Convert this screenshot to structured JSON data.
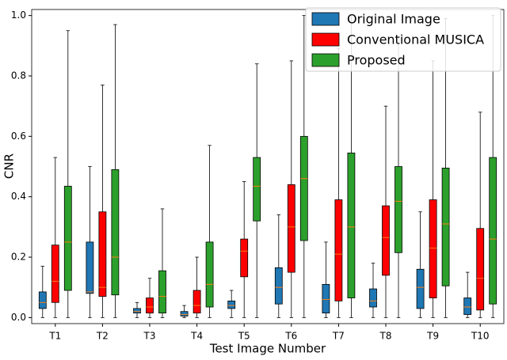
{
  "chart_data": {
    "type": "box",
    "x_label": "Test Image Number",
    "y_label": "CNR",
    "categories": [
      "T1",
      "T2",
      "T3",
      "T4",
      "T5",
      "T6",
      "T7",
      "T8",
      "T9",
      "T10"
    ],
    "ylim": [
      -0.02,
      1.02
    ],
    "yticks": [
      {
        "value": 0,
        "label": "0.0"
      },
      0.2,
      0.4,
      0.6,
      0.8,
      {
        "value": 1,
        "label": "1.0"
      }
    ],
    "median_color": "#ff7f0e",
    "legend": "upper right",
    "series": [
      {
        "name": "Original Image",
        "color": "#1f77b4",
        "values": [
          [
            0,
            0.03,
            0.05,
            0.085,
            0.17
          ],
          [
            0,
            0.08,
            0.085,
            0.25,
            0.5
          ],
          [
            0,
            0.015,
            0.02,
            0.03,
            0.05
          ],
          [
            0,
            0.005,
            0.01,
            0.02,
            0.04
          ],
          [
            0,
            0.03,
            0.04,
            0.055,
            0.09
          ],
          [
            0,
            0.045,
            0.1,
            0.165,
            0.34
          ],
          [
            0,
            0.015,
            0.06,
            0.11,
            0.25
          ],
          [
            0,
            0.035,
            0.055,
            0.095,
            0.18
          ],
          [
            0,
            0.03,
            0.1,
            0.16,
            0.35
          ],
          [
            0,
            0.01,
            0.035,
            0.065,
            0.15
          ]
        ]
      },
      {
        "name": "Conventional MUSICA",
        "color": "#ff0000",
        "values": [
          [
            0,
            0.05,
            0.12,
            0.24,
            0.53
          ],
          [
            0,
            0.07,
            0.1,
            0.35,
            0.77
          ],
          [
            0,
            0.015,
            0.035,
            0.065,
            0.13
          ],
          [
            0,
            0.015,
            0.04,
            0.09,
            0.2
          ],
          [
            0,
            0.135,
            0.22,
            0.26,
            0.45
          ],
          [
            0,
            0.15,
            0.3,
            0.44,
            0.85
          ],
          [
            0,
            0.055,
            0.21,
            0.39,
            0.89
          ],
          [
            0,
            0.14,
            0.265,
            0.37,
            0.7
          ],
          [
            0,
            0.065,
            0.23,
            0.39,
            0.85
          ],
          [
            0,
            0.025,
            0.13,
            0.295,
            0.68
          ]
        ]
      },
      {
        "name": "Proposed",
        "color": "#2ca02c",
        "values": [
          [
            0,
            0.09,
            0.25,
            0.435,
            0.95
          ],
          [
            0,
            0.075,
            0.2,
            0.49,
            0.97
          ],
          [
            0,
            0.015,
            0.07,
            0.155,
            0.36
          ],
          [
            0,
            0.035,
            0.11,
            0.25,
            0.57
          ],
          [
            0,
            0.32,
            0.435,
            0.53,
            0.84
          ],
          [
            0,
            0.255,
            0.46,
            0.6,
            1.0
          ],
          [
            0,
            0.065,
            0.3,
            0.545,
            1.0
          ],
          [
            0,
            0.215,
            0.385,
            0.5,
            0.93
          ],
          [
            0,
            0.105,
            0.31,
            0.495,
            0.99
          ],
          [
            0,
            0.045,
            0.26,
            0.53,
            1.0
          ]
        ]
      }
    ]
  }
}
